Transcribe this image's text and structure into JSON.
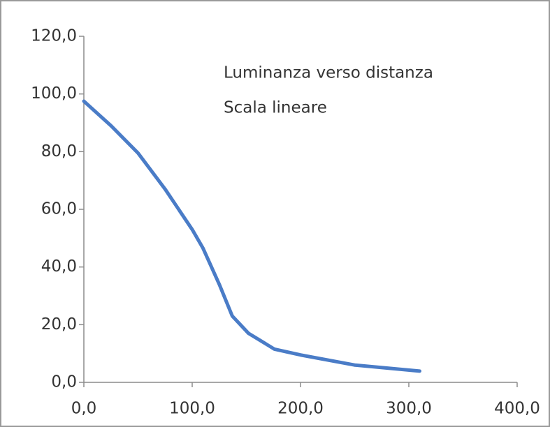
{
  "chart_data": {
    "type": "line",
    "title": "Luminanza verso distanza",
    "subtitle": "Scala lineare",
    "x": [
      0,
      25,
      50,
      75,
      100,
      110,
      125,
      137,
      152,
      176,
      200,
      250,
      310
    ],
    "series": [
      {
        "color": "#4a7cc7",
        "values": [
          97.5,
          89,
          79.5,
          67,
          53,
          46.5,
          34,
          23,
          17,
          11.5,
          9.5,
          6,
          3.9
        ]
      }
    ],
    "xlim": [
      0,
      400
    ],
    "ylim": [
      0,
      120
    ],
    "xticks": [
      {
        "value": 0,
        "label": "0,0"
      },
      {
        "value": 100,
        "label": "100,0"
      },
      {
        "value": 200,
        "label": "200,0"
      },
      {
        "value": 300,
        "label": "300,0"
      },
      {
        "value": 400,
        "label": "400,0"
      }
    ],
    "yticks": [
      {
        "value": 0,
        "label": "0,0"
      },
      {
        "value": 20,
        "label": "20,0"
      },
      {
        "value": 40,
        "label": "40,0"
      },
      {
        "value": 60,
        "label": "60,0"
      },
      {
        "value": 80,
        "label": "80,0"
      },
      {
        "value": 100,
        "label": "100,0"
      },
      {
        "value": 120,
        "label": "120,0"
      }
    ],
    "grid": false
  }
}
